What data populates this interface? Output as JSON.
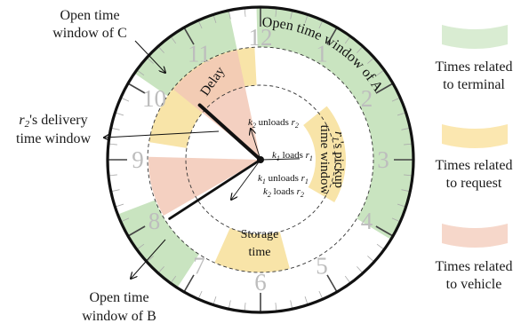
{
  "colors": {
    "terminal": "#c9e4c0",
    "request": "#f8e4a8",
    "vehicle": "#f2c8b6",
    "legend_terminal": "#d9ecd2",
    "legend_request": "#fbe7b0",
    "legend_vehicle": "#f6d7ca",
    "numerals": "#bdbdbd",
    "rim": "#111111"
  },
  "numerals": [
    "12",
    "1",
    "2",
    "3",
    "4",
    "5",
    "6",
    "7",
    "8",
    "9",
    "10",
    "11"
  ],
  "hands": {
    "k2_hour_position": 10.4,
    "k1_hour_position": 7.9,
    "pointer_to_3": 2.95
  },
  "bands": {
    "terminal_A": {
      "label": "Open time window of A",
      "start_hour": 11.95,
      "end_hour": 4.05
    },
    "terminal_C": {
      "label": "",
      "start_hour": 10.15,
      "end_hour": 11.6
    },
    "terminal_B": {
      "label": "",
      "start_hour": 7.1,
      "end_hour": 8.3
    },
    "delay": {
      "label": "Delay",
      "start_hour": 10.35,
      "end_hour": 11.9
    },
    "r2_delivery": {
      "label": "",
      "start_hour": 9.3,
      "end_hour": 11.0
    },
    "r1_pickup": {
      "label": "r1's pickup time window",
      "start_hour": 1.7,
      "end_hour": 4.0
    },
    "storage": {
      "label": "Storage time",
      "start_hour": 5.5,
      "end_hour": 6.8
    }
  },
  "vehicle_wedges": [
    {
      "name": "k2",
      "start_hour": 10.3,
      "end_hour": 11.6
    },
    {
      "name": "k1",
      "start_hour": 8.0,
      "end_hour": 9.05
    }
  ],
  "inner_labels": {
    "k2_unloads_r2": "k2 unloads r2",
    "k1_loads_r1": "k1 loads r1",
    "k1_unloads_r1": "k1 unloads r1",
    "k2_loads_r2": "k2 loads r2"
  },
  "callouts": {
    "open_c": [
      "Open time",
      "window of C"
    ],
    "r2_delivery": [
      "r2's delivery",
      "time window"
    ],
    "open_b": [
      "Open time",
      "window of B"
    ]
  },
  "legend": [
    {
      "key": "terminal",
      "lines": [
        "Times related",
        "to terminal"
      ]
    },
    {
      "key": "request",
      "lines": [
        "Times related",
        "to request"
      ]
    },
    {
      "key": "vehicle",
      "lines": [
        "Times related",
        "to vehicle"
      ]
    }
  ]
}
